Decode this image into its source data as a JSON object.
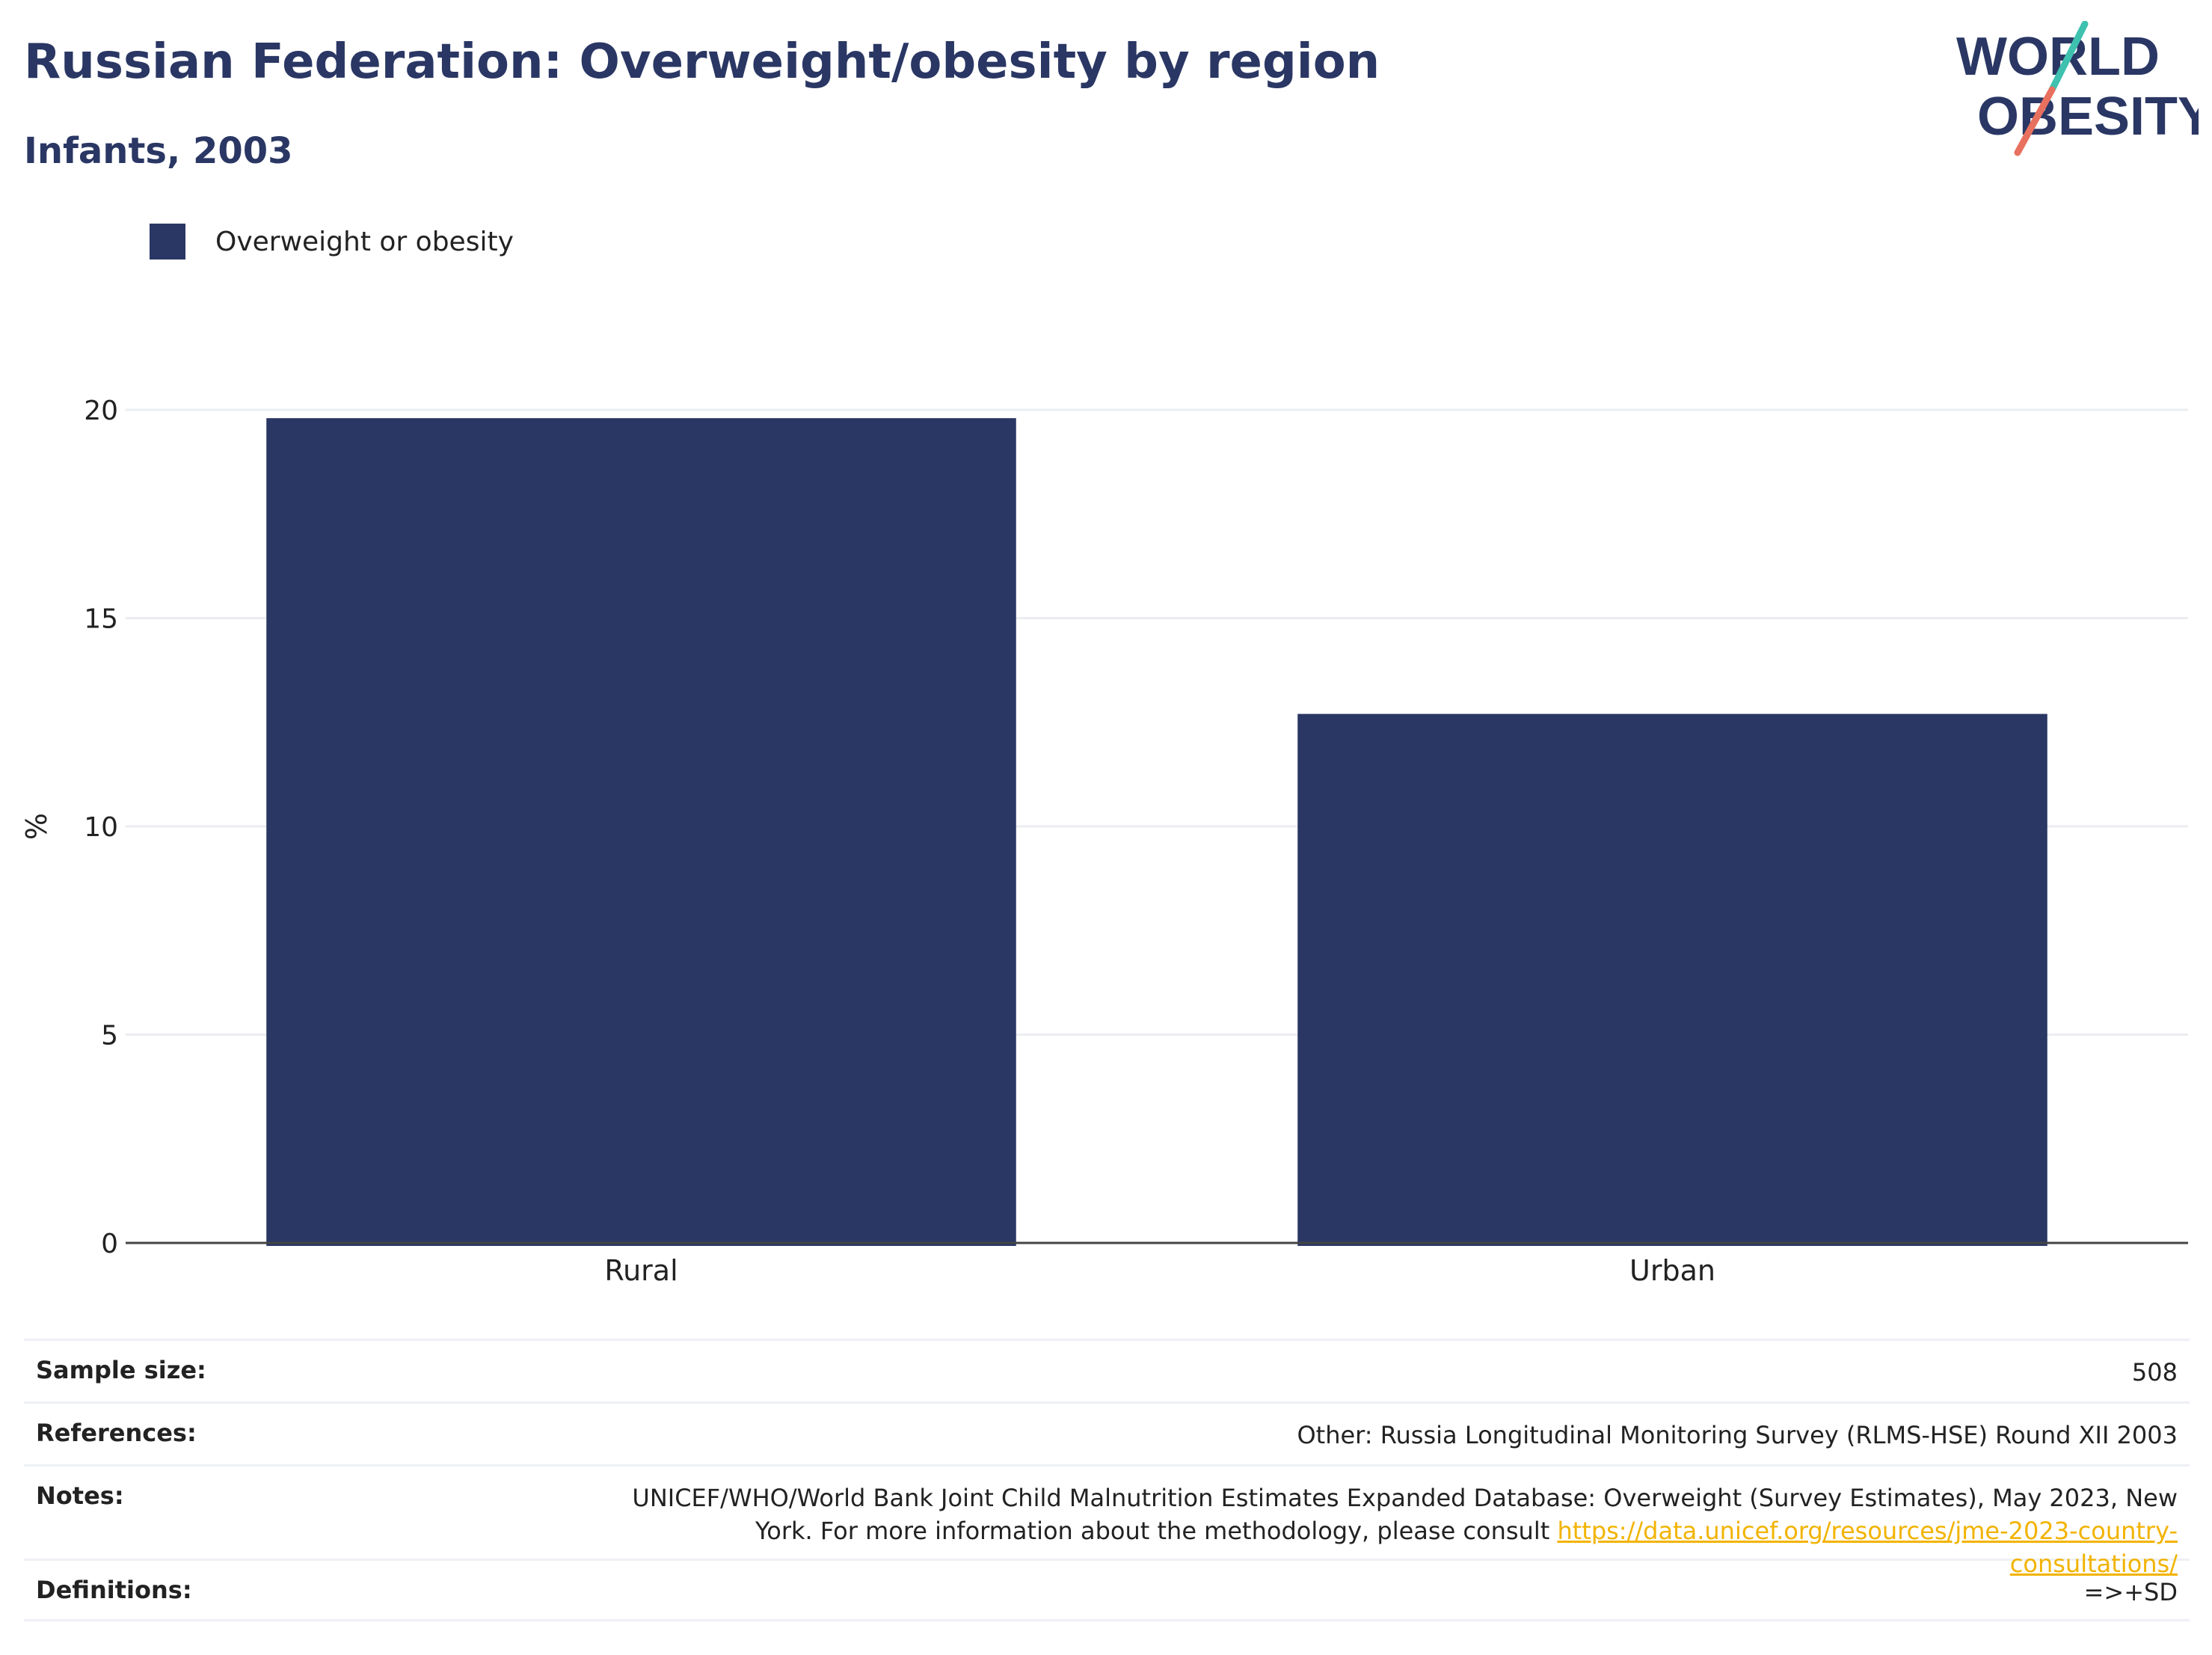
{
  "header": {
    "title": "Russian Federation: Overweight/obesity by region",
    "subtitle": "Infants, 2003"
  },
  "logo": {
    "line1": "WORLD",
    "line2": "OBESITY",
    "colors": {
      "text": "#2a3764",
      "slash_top": "#3fc1b0",
      "slash_bottom": "#e8705f"
    }
  },
  "legend": {
    "label": "Overweight or obesity",
    "color": "#2a3764"
  },
  "chart_data": {
    "type": "bar",
    "categories": [
      "Rural",
      "Urban"
    ],
    "series": [
      {
        "name": "Overweight or obesity",
        "values": [
          19.8,
          12.7
        ],
        "color": "#2a3764"
      }
    ],
    "title": "Russian Federation: Overweight/obesity by region",
    "subtitle": "Infants, 2003",
    "xlabel": "",
    "ylabel": "%",
    "ylim": [
      0,
      20
    ],
    "yticks": [
      0,
      5,
      10,
      15,
      20
    ],
    "grid": true,
    "legend_position": "top-left"
  },
  "info": {
    "sample_size": {
      "label": "Sample size:",
      "value": "508"
    },
    "references": {
      "label": "References:",
      "value": "Other: Russia Longitudinal Monitoring Survey (RLMS-HSE) Round XII 2003"
    },
    "notes": {
      "label": "Notes:",
      "value": "UNICEF/WHO/World Bank Joint Child Malnutrition Estimates Expanded Database: Overweight (Survey Estimates), May 2023, New York. For more information about the methodology, please consult ",
      "link": "https://data.unicef.org/resources/jme-2023-country-consultations/"
    },
    "definitions": {
      "label": "Definitions:",
      "value": "=>+SD"
    }
  }
}
